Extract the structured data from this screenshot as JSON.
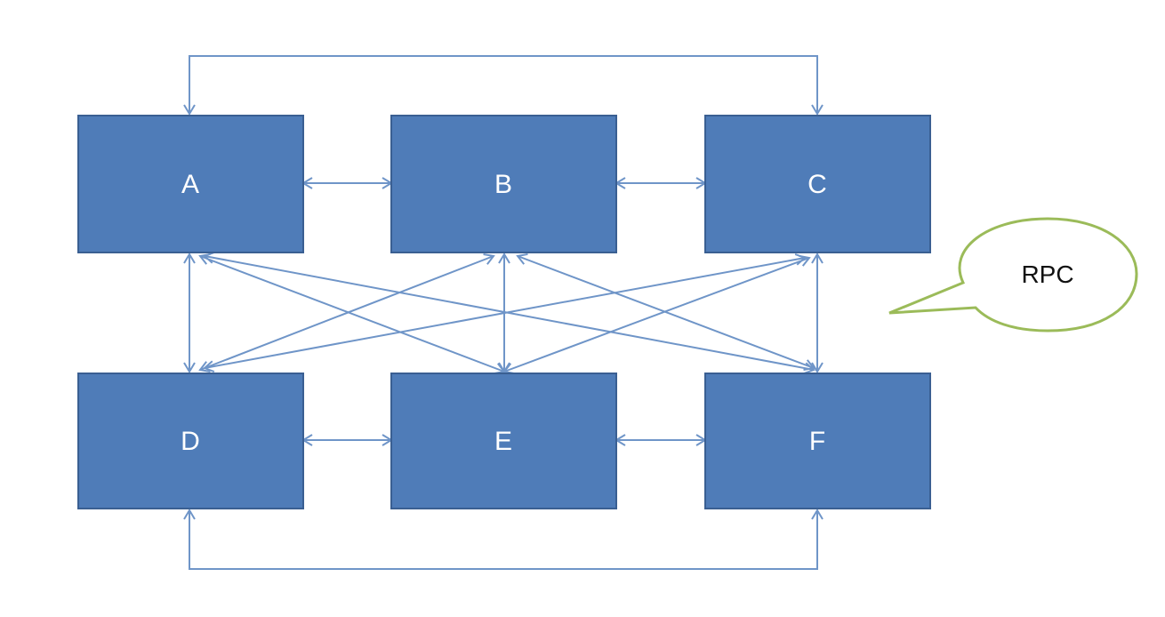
{
  "colors": {
    "node_fill": "#4f7cb8",
    "node_border": "#3a5f92",
    "edge": "#6f95c8",
    "callout_border": "#9bbb59",
    "callout_fill": "#ffffff"
  },
  "nodes": {
    "a": {
      "label": "A"
    },
    "b": {
      "label": "B"
    },
    "c": {
      "label": "C"
    },
    "d": {
      "label": "D"
    },
    "e": {
      "label": "E"
    },
    "f": {
      "label": "F"
    }
  },
  "callout": {
    "label": "RPC"
  },
  "connections": [
    [
      "A",
      "B"
    ],
    [
      "B",
      "C"
    ],
    [
      "D",
      "E"
    ],
    [
      "E",
      "F"
    ],
    [
      "A",
      "D"
    ],
    [
      "B",
      "E"
    ],
    [
      "C",
      "F"
    ],
    [
      "A",
      "E"
    ],
    [
      "A",
      "F"
    ],
    [
      "B",
      "D"
    ],
    [
      "B",
      "F"
    ],
    [
      "C",
      "D"
    ],
    [
      "C",
      "E"
    ],
    [
      "A",
      "C"
    ],
    [
      "D",
      "F"
    ]
  ]
}
